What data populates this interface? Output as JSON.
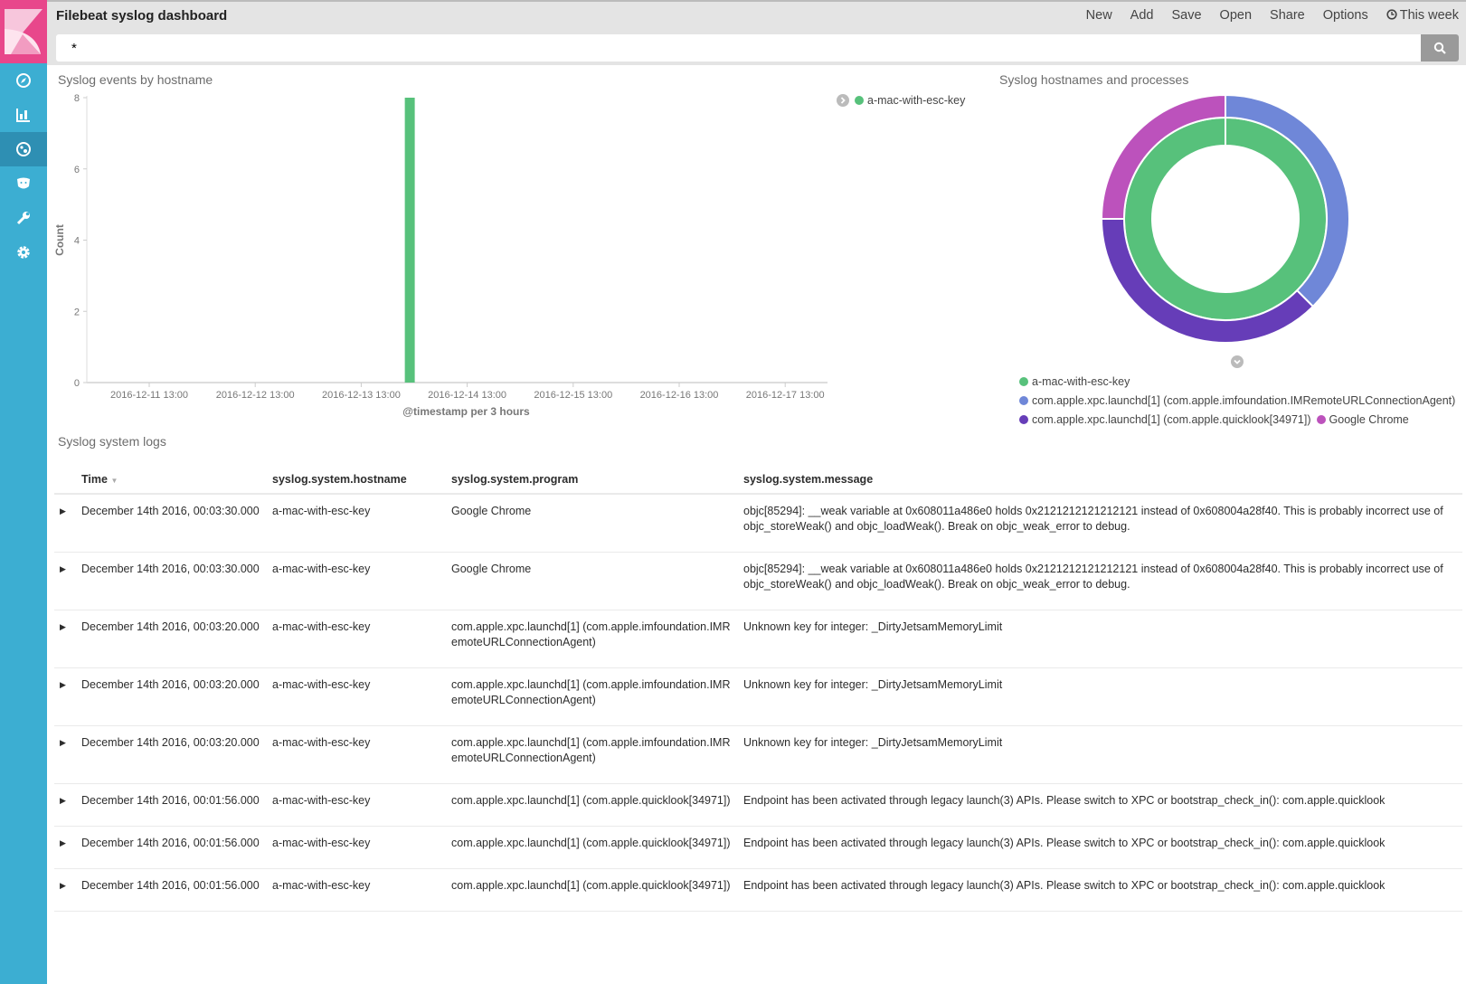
{
  "app": {
    "title": "Filebeat syslog dashboard"
  },
  "menu": [
    {
      "label": "New"
    },
    {
      "label": "Add"
    },
    {
      "label": "Save"
    },
    {
      "label": "Open"
    },
    {
      "label": "Share"
    },
    {
      "label": "Options"
    },
    {
      "label": "This week",
      "icon": "clock-icon"
    }
  ],
  "search": {
    "value": "*"
  },
  "sidebar": {
    "items": [
      "compass-icon",
      "bar-chart-icon",
      "dashboard-icon",
      "bear-icon",
      "wrench-icon",
      "gear-icon"
    ],
    "active": 2
  },
  "panels": {
    "bar_title": "Syslog events by hostname",
    "pie_title": "Syslog hostnames and processes",
    "table_title": "Syslog system logs"
  },
  "colors": {
    "green": "#57c17b",
    "blue": "#6f87d8",
    "purple": "#663db8",
    "magenta": "#bc52bc",
    "sidebar": "#3caed2",
    "logo": "#e8478b"
  },
  "chart_data": [
    {
      "type": "bar",
      "title": "Syslog events by hostname",
      "xlabel": "@timestamp per 3 hours",
      "ylabel": "Count",
      "ylim": [
        0,
        8
      ],
      "yticks": [
        "0",
        "2",
        "4",
        "6",
        "8"
      ],
      "xticks": [
        "2016-12-11 13:00",
        "2016-12-12 13:00",
        "2016-12-13 13:00",
        "2016-12-14 13:00",
        "2016-12-15 13:00",
        "2016-12-16 13:00",
        "2016-12-17 13:00"
      ],
      "series": [
        {
          "name": "a-mac-with-esc-key",
          "color": "#57c17b",
          "points": [
            {
              "x": "2016-12-14 00:00",
              "y": 8
            }
          ]
        }
      ],
      "legend": "top-right"
    },
    {
      "type": "pie",
      "title": "Syslog hostnames and processes",
      "donut": true,
      "inner": [
        {
          "label": "a-mac-with-esc-key",
          "value": 8,
          "color": "#57c17b"
        }
      ],
      "outer": [
        {
          "label": "com.apple.xpc.launchd[1] (com.apple.imfoundation.IMRemoteURLConnectionAgent)",
          "value": 3,
          "color": "#6f87d8"
        },
        {
          "label": "com.apple.xpc.launchd[1] (com.apple.quicklook[34971])",
          "value": 3,
          "color": "#663db8"
        },
        {
          "label": "Google Chrome",
          "value": 2,
          "color": "#bc52bc"
        }
      ],
      "legend": "bottom"
    }
  ],
  "table": {
    "columns": [
      "Time",
      "syslog.system.hostname",
      "syslog.system.program",
      "syslog.system.message"
    ],
    "rows": [
      [
        "December 14th 2016, 00:03:30.000",
        "a-mac-with-esc-key",
        "Google Chrome",
        "objc[85294]: __weak variable at 0x608011a486e0 holds 0x2121212121212121 instead of 0x608004a28f40. This is probably incorrect use of objc_storeWeak() and objc_loadWeak(). Break on objc_weak_error to debug."
      ],
      [
        "December 14th 2016, 00:03:30.000",
        "a-mac-with-esc-key",
        "Google Chrome",
        "objc[85294]: __weak variable at 0x608011a486e0 holds 0x2121212121212121 instead of 0x608004a28f40. This is probably incorrect use of objc_storeWeak() and objc_loadWeak(). Break on objc_weak_error to debug."
      ],
      [
        "December 14th 2016, 00:03:20.000",
        "a-mac-with-esc-key",
        "com.apple.xpc.launchd[1] (com.apple.imfoundation.IMRemoteURLConnectionAgent)",
        "Unknown key for integer: _DirtyJetsamMemoryLimit"
      ],
      [
        "December 14th 2016, 00:03:20.000",
        "a-mac-with-esc-key",
        "com.apple.xpc.launchd[1] (com.apple.imfoundation.IMRemoteURLConnectionAgent)",
        "Unknown key for integer: _DirtyJetsamMemoryLimit"
      ],
      [
        "December 14th 2016, 00:03:20.000",
        "a-mac-with-esc-key",
        "com.apple.xpc.launchd[1] (com.apple.imfoundation.IMRemoteURLConnectionAgent)",
        "Unknown key for integer: _DirtyJetsamMemoryLimit"
      ],
      [
        "December 14th 2016, 00:01:56.000",
        "a-mac-with-esc-key",
        "com.apple.xpc.launchd[1] (com.apple.quicklook[34971])",
        "Endpoint has been activated through legacy launch(3) APIs. Please switch to XPC or bootstrap_check_in(): com.apple.quicklook"
      ],
      [
        "December 14th 2016, 00:01:56.000",
        "a-mac-with-esc-key",
        "com.apple.xpc.launchd[1] (com.apple.quicklook[34971])",
        "Endpoint has been activated through legacy launch(3) APIs. Please switch to XPC or bootstrap_check_in(): com.apple.quicklook"
      ],
      [
        "December 14th 2016, 00:01:56.000",
        "a-mac-with-esc-key",
        "com.apple.xpc.launchd[1] (com.apple.quicklook[34971])",
        "Endpoint has been activated through legacy launch(3) APIs. Please switch to XPC or bootstrap_check_in(): com.apple.quicklook"
      ]
    ]
  }
}
